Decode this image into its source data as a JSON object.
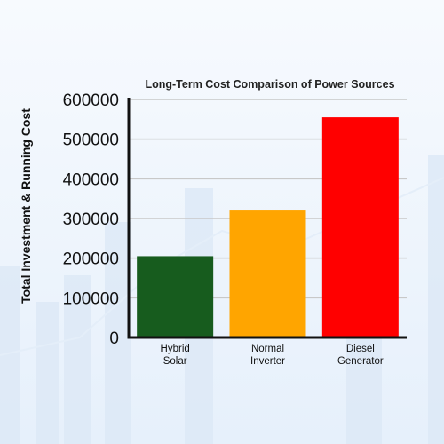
{
  "chart_data": {
    "type": "bar",
    "title": "Long-Term Cost Comparison of Power Sources",
    "xlabel": "",
    "ylabel": "Total Investment & Running Cost",
    "categories": [
      [
        "Hybrid",
        "Solar"
      ],
      [
        "Normal",
        "Inverter"
      ],
      [
        "Diesel",
        "Generator"
      ]
    ],
    "values": [
      205000,
      320000,
      555000
    ],
    "colors": [
      "#175c1e",
      "#ffa500",
      "#ff0000"
    ],
    "ylim": [
      0,
      600000
    ],
    "yticks": [
      "0",
      "100000",
      "200000",
      "300000",
      "400000",
      "500000",
      "600000"
    ],
    "grid": true
  },
  "colors": {
    "axis": "#111111",
    "grid": "#c8c8c8",
    "background": "#f2f7fd"
  }
}
